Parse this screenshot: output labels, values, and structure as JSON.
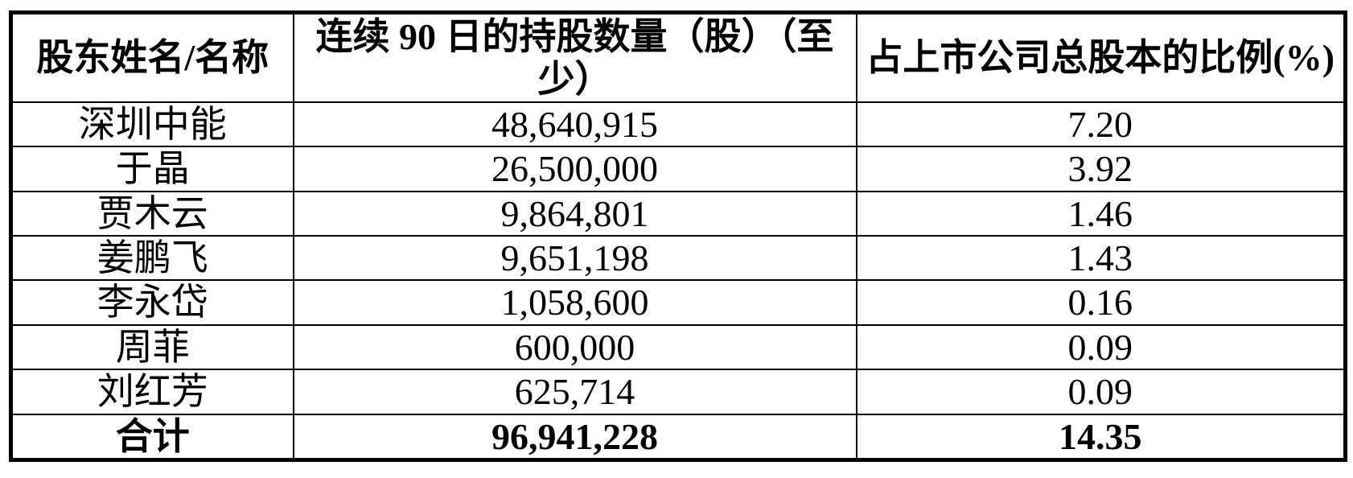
{
  "table": {
    "headers": {
      "shareholder": "股东姓名/名称",
      "shares_90d": "连续 90 日的持股数量（股）（至少）",
      "ratio": "占上市公司总股本的比例(%)"
    },
    "rows": [
      {
        "name": "深圳中能",
        "shares": "48,640,915",
        "ratio": "7.20"
      },
      {
        "name": "于晶",
        "shares": "26,500,000",
        "ratio": "3.92"
      },
      {
        "name": "贾木云",
        "shares": "9,864,801",
        "ratio": "1.46"
      },
      {
        "name": "姜鹏飞",
        "shares": "9,651,198",
        "ratio": "1.43"
      },
      {
        "name": "李永岱",
        "shares": "1,058,600",
        "ratio": "0.16"
      },
      {
        "name": "周菲",
        "shares": "600,000",
        "ratio": "0.09"
      },
      {
        "name": "刘红芳",
        "shares": "625,714",
        "ratio": "0.09"
      }
    ],
    "total_row": {
      "name": "合计",
      "shares": "96,941,228",
      "ratio": "14.35"
    },
    "colors": {
      "border": "#000000",
      "background": "#ffffff",
      "text": "#000000"
    }
  }
}
